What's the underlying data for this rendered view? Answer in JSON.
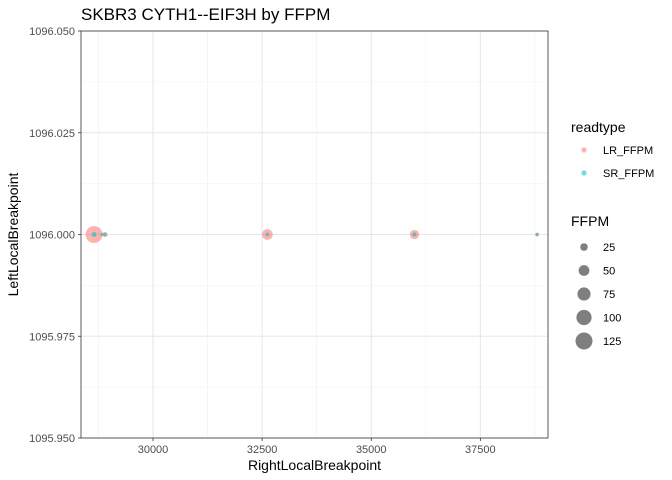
{
  "chart_data": {
    "type": "scatter",
    "title": "SKBR3 CYTH1--EIF3H by FFPM",
    "xlabel": "RightLocalBreakpoint",
    "ylabel": "LeftLocalBreakpoint",
    "xlim": [
      28350,
      39050
    ],
    "ylim": [
      1095.95,
      1096.05
    ],
    "x_ticks": [
      30000,
      32500,
      35000,
      37500
    ],
    "x_tick_labels": [
      "30000",
      "32500",
      "35000",
      "37500"
    ],
    "y_ticks": [
      1095.95,
      1095.975,
      1096.0,
      1096.025,
      1096.05
    ],
    "y_tick_labels": [
      "1095.950",
      "1095.975",
      "1096.000",
      "1096.025",
      "1096.050"
    ],
    "grid": true,
    "legend_placement": "right",
    "series": [
      {
        "name": "LR_FFPM",
        "color": "#F8766D",
        "points": [
          {
            "x": 28650,
            "y": 1096.0,
            "size": 125
          },
          {
            "x": 28900,
            "y": 1096.0,
            "size": 12
          },
          {
            "x": 32620,
            "y": 1096.0,
            "size": 50
          },
          {
            "x": 35990,
            "y": 1096.0,
            "size": 38
          },
          {
            "x": 38800,
            "y": 1096.0,
            "size": 6
          }
        ]
      },
      {
        "name": "SR_FFPM",
        "color": "#00BFC4",
        "points": [
          {
            "x": 28650,
            "y": 1096.0,
            "size": 10
          },
          {
            "x": 28830,
            "y": 1096.0,
            "size": 4
          },
          {
            "x": 28900,
            "y": 1096.0,
            "size": 4
          },
          {
            "x": 32620,
            "y": 1096.0,
            "size": 6
          },
          {
            "x": 35990,
            "y": 1096.0,
            "size": 8
          },
          {
            "x": 38800,
            "y": 1096.0,
            "size": 3
          }
        ]
      }
    ],
    "legend": {
      "color_title": "readtype",
      "color_entries": [
        {
          "label": "LR_FFPM",
          "color": "#F8766D"
        },
        {
          "label": "SR_FFPM",
          "color": "#00BFC4"
        }
      ],
      "size_title": "FFPM",
      "size_entries": [
        {
          "label": "25",
          "value": 25
        },
        {
          "label": "50",
          "value": 50
        },
        {
          "label": "75",
          "value": 75
        },
        {
          "label": "100",
          "value": 100
        },
        {
          "label": "125",
          "value": 125
        }
      ]
    }
  }
}
